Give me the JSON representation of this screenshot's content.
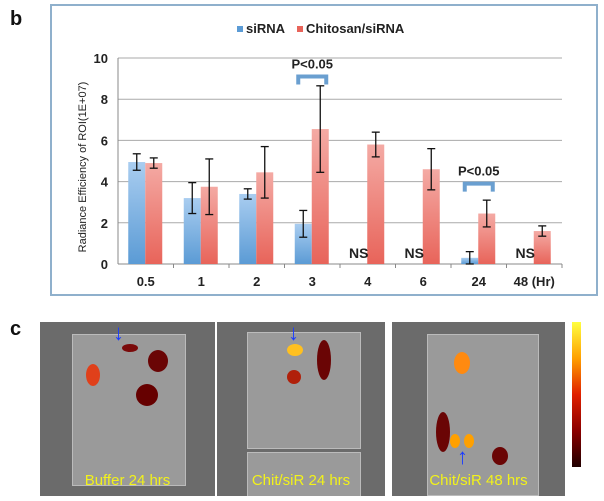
{
  "panel_labels": {
    "b": "b",
    "c": "c"
  },
  "chart_data": {
    "type": "bar",
    "categories": [
      "0.5",
      "1",
      "2",
      "3",
      "4",
      "6",
      "24",
      "48 (Hr)"
    ],
    "series": [
      {
        "name": "siRNA",
        "color": "#5b9bd5",
        "values": [
          4.95,
          3.2,
          3.4,
          1.95,
          0,
          0,
          0.3,
          0
        ],
        "errors": [
          0.4,
          0.75,
          0.25,
          0.65,
          null,
          null,
          0.3,
          null
        ]
      },
      {
        "name": "Chitosan/siRNA",
        "color": "#e8645a",
        "values": [
          4.9,
          3.75,
          4.45,
          6.55,
          5.8,
          4.6,
          2.45,
          1.6
        ],
        "errors": [
          0.25,
          1.35,
          1.25,
          2.1,
          0.6,
          1.0,
          0.65,
          0.25
        ]
      }
    ],
    "ylabel": "Radiance Efficiency of ROI(1E+07)",
    "xlabel": "",
    "ylim": [
      0,
      10
    ],
    "yticks": [
      0,
      2,
      4,
      6,
      8,
      10
    ],
    "grid": true,
    "legend": "top",
    "annotations": [
      {
        "text": "P<0.05",
        "category": "3",
        "type": "bracket"
      },
      {
        "text": "P<0.05",
        "category": "24",
        "type": "bracket"
      },
      {
        "text": "NS",
        "category": "4"
      },
      {
        "text": "NS",
        "category": "6"
      },
      {
        "text": "NS",
        "category": "48 (Hr)"
      }
    ]
  },
  "images": [
    {
      "caption": "Buffer 24 hrs"
    },
    {
      "caption": "Chit/siR 24 hrs"
    },
    {
      "caption": "Chit/siR 48 hrs"
    }
  ]
}
